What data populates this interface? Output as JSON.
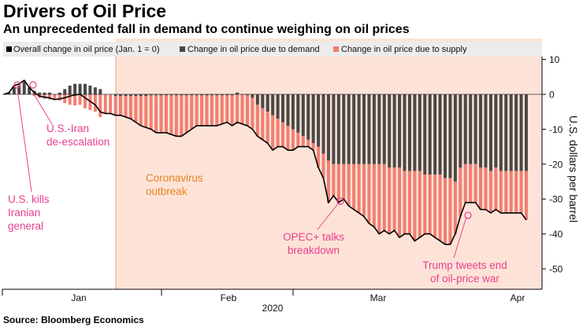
{
  "title": "Drivers of Oil Price",
  "subtitle": "An unprecedented fall in demand to continue weighing on oil prices",
  "source": "Source: Bloomberg Economics",
  "colors": {
    "demand": "#4a4847",
    "supply": "#f07f72",
    "overall": "#000000",
    "shade": "#fde3d7",
    "shade_border": "#f2a27a",
    "annotation_pink": "#e8408f",
    "annotation_orange": "#e58424",
    "legend_bg": "#ececec"
  },
  "chart_data": {
    "type": "bar",
    "ylabel": "U.S. dollars per barrel",
    "ylim": [
      -55,
      15
    ],
    "yticks": [
      10,
      0,
      -10,
      -20,
      -30,
      -40,
      -50
    ],
    "xlabel": "2020",
    "month_ticks": [
      "Jan",
      "Feb",
      "Mar",
      "Apr"
    ],
    "grid": false,
    "legend_position": "top",
    "shaded_region": {
      "start": "2020-01-23",
      "label": "Coronavirus\noutbreak"
    },
    "series": [
      {
        "name": "Overall change in oil price (Jan. 1 = 0)",
        "kind": "line",
        "values": [
          0,
          0.5,
          2.5,
          3,
          4,
          2,
          0.5,
          -0.5,
          -0.8,
          -1,
          -1.5,
          -1.3,
          -1,
          -0.5,
          -0.2,
          0,
          -1,
          -2,
          -3,
          -5,
          -5.5,
          -5.5,
          -6,
          -6,
          -6.5,
          -7,
          -8,
          -9,
          -9.5,
          -10,
          -11,
          -11,
          -11,
          -11.5,
          -12,
          -12,
          -11,
          -10,
          -9,
          -9,
          -9,
          -9,
          -9,
          -8.5,
          -8,
          -9,
          -8,
          -8.5,
          -9,
          -10,
          -12,
          -13,
          -14,
          -16,
          -15,
          -15,
          -16,
          -16,
          -15,
          -15,
          -15,
          -16,
          -21,
          -24,
          -31,
          -29,
          -31,
          -30,
          -32,
          -33,
          -34,
          -35,
          -37,
          -38,
          -40,
          -39,
          -40,
          -39,
          -41,
          -40,
          -40,
          -42,
          -41,
          -40,
          -40,
          -41,
          -42,
          -43,
          -43,
          -40,
          -35,
          -31,
          -31,
          -31,
          -33,
          -33,
          -34,
          -33,
          -34,
          -34,
          -34,
          -34,
          -34,
          -36
        ]
      },
      {
        "name": "Change in oil price due to demand",
        "kind": "bar",
        "values": [
          0,
          0.5,
          2,
          2.5,
          3.5,
          2,
          1,
          0.5,
          0.5,
          0.5,
          0,
          0.5,
          1.5,
          2.5,
          3,
          3,
          3,
          2.5,
          2,
          1.5,
          0,
          0,
          -0.5,
          -0.5,
          -0.5,
          -0.5,
          -0.5,
          -0.5,
          -0.5,
          -0.3,
          -0.3,
          -0.3,
          -0.3,
          -0.3,
          -0.3,
          -0.3,
          -0.3,
          -0.3,
          -0.3,
          -0.3,
          -0.3,
          -0.3,
          -0.3,
          -0.3,
          -0.3,
          -0.3,
          0.5,
          0,
          -0.3,
          -1,
          -3,
          -4,
          -5,
          -6,
          -7,
          -8,
          -9,
          -10,
          -11,
          -12,
          -13,
          -14,
          -15,
          -17,
          -19,
          -20,
          -20,
          -20,
          -20,
          -20,
          -20,
          -20,
          -20,
          -20,
          -20,
          -20,
          -21,
          -21,
          -21,
          -22,
          -22,
          -22,
          -22,
          -23,
          -23,
          -23,
          -23,
          -24,
          -24,
          -25,
          -21,
          -20,
          -20,
          -20,
          -21,
          -21,
          -22,
          -21,
          -22,
          -22,
          -22,
          -22,
          -22,
          -22
        ]
      },
      {
        "name": "Change in oil price due to supply",
        "kind": "bar",
        "values": [
          0,
          0,
          0.5,
          0.5,
          0.5,
          0,
          -0.5,
          -1,
          -1.3,
          -1.5,
          -1.5,
          -1.8,
          -2.5,
          -3,
          -3.2,
          -3,
          -4,
          -4.5,
          -5,
          -6.5,
          -5.5,
          -5.5,
          -5.5,
          -5.5,
          -6,
          -6.5,
          -7.5,
          -8.5,
          -9,
          -9.7,
          -10.7,
          -10.7,
          -10.7,
          -11.2,
          -11.7,
          -11.7,
          -10.7,
          -9.7,
          -8.7,
          -8.7,
          -8.7,
          -8.7,
          -8.7,
          -8.2,
          -7.7,
          -8.7,
          -8.5,
          -8.5,
          -8.7,
          -9,
          -9,
          -9,
          -9,
          -10,
          -8,
          -7,
          -7,
          -6,
          -4,
          -3,
          -2,
          -2,
          -6,
          -7,
          -12,
          -9,
          -11,
          -10,
          -12,
          -13,
          -14,
          -15,
          -17,
          -18,
          -20,
          -19,
          -19,
          -18,
          -20,
          -18,
          -18,
          -20,
          -19,
          -17,
          -17,
          -18,
          -19,
          -19,
          -19,
          -15,
          -14,
          -11,
          -11,
          -11,
          -12,
          -12,
          -12,
          -12,
          -12,
          -12,
          -12,
          -12,
          -12,
          -14
        ]
      }
    ],
    "annotations": [
      {
        "text": "U.S. kills\nIranian\ngeneral",
        "color": "pink"
      },
      {
        "text": "U.S.-Iran\nde-escalation",
        "color": "pink"
      },
      {
        "text": "Coronavirus\noutbreak",
        "color": "orange"
      },
      {
        "text": "OPEC+ talks\nbreakdown",
        "color": "pink"
      },
      {
        "text": "Trump tweets end\nof oil-price war",
        "color": "pink"
      }
    ]
  }
}
